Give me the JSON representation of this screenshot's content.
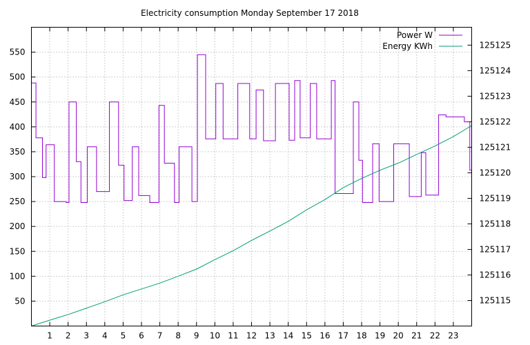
{
  "chart_data": {
    "type": "line",
    "title": "Electricity consumption Monday September 17 2018",
    "xlabel": "",
    "ylabel": "",
    "y2label": "",
    "xlim": [
      0,
      24
    ],
    "ylim": [
      0,
      600
    ],
    "y2lim": [
      125114,
      125125.7
    ],
    "x_ticks": [
      1,
      2,
      3,
      4,
      5,
      6,
      7,
      8,
      9,
      10,
      11,
      12,
      13,
      14,
      15,
      16,
      17,
      18,
      19,
      20,
      21,
      22,
      23
    ],
    "y_ticks": [
      50,
      100,
      150,
      200,
      250,
      300,
      350,
      400,
      450,
      500,
      550
    ],
    "y2_ticks": [
      125115,
      125116,
      125117,
      125118,
      125119,
      125120,
      125121,
      125122,
      125123,
      125124,
      125125
    ],
    "grid": true,
    "legend": "top-right",
    "series": [
      {
        "name": "Power W",
        "axis": "y1",
        "color": "#9400d3",
        "step": true,
        "x": [
          0,
          0.25,
          0.6,
          0.8,
          1.25,
          1.9,
          2.05,
          2.45,
          2.7,
          3.05,
          3.55,
          4.25,
          4.75,
          5.05,
          5.5,
          5.85,
          6.45,
          6.95,
          7.25,
          7.8,
          8.05,
          8.75,
          9.05,
          9.5,
          10.05,
          10.45,
          11.25,
          11.9,
          12.25,
          12.65,
          13.3,
          14.05,
          14.35,
          14.65,
          15.2,
          15.55,
          16.35,
          16.55,
          16.8,
          17.55,
          17.85,
          18.05,
          18.6,
          18.95,
          19.75,
          20.6,
          21.25,
          21.5,
          22.2,
          22.6,
          23.6,
          23.9
        ],
        "y": [
          488,
          378,
          298,
          364,
          250,
          248,
          450,
          330,
          248,
          360,
          270,
          450,
          323,
          252,
          360,
          262,
          248,
          443,
          327,
          248,
          360,
          250,
          545,
          376,
          487,
          376,
          487,
          376,
          474,
          372,
          487,
          373,
          493,
          378,
          487,
          376,
          493,
          266,
          266,
          450,
          333,
          248,
          366,
          250,
          366,
          260,
          348,
          263,
          424,
          420,
          410,
          313
        ]
      },
      {
        "name": "Energy KWh",
        "axis": "y2",
        "color": "#009e73",
        "step": false,
        "x": [
          0,
          1,
          2,
          3,
          4,
          5,
          6,
          7,
          8,
          9,
          10,
          11,
          12,
          13,
          14,
          15,
          16,
          17,
          18,
          19,
          20,
          21,
          22,
          23,
          24
        ],
        "y": [
          125114.0,
          125114.23,
          125114.45,
          125114.7,
          125114.95,
          125115.22,
          125115.45,
          125115.68,
          125115.95,
          125116.23,
          125116.6,
          125116.95,
          125117.35,
          125117.72,
          125118.1,
          125118.55,
          125118.95,
          125119.42,
          125119.78,
          125120.1,
          125120.38,
          125120.72,
          125121.05,
          125121.42,
          125121.85
        ]
      }
    ]
  }
}
